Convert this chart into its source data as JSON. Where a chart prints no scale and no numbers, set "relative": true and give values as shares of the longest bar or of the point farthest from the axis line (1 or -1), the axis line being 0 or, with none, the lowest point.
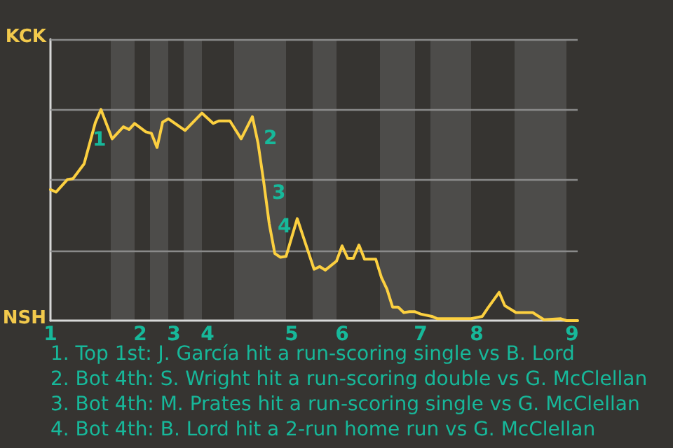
{
  "chart_data": {
    "type": "line",
    "relative": true,
    "categories": [
      "1",
      null,
      null,
      null,
      null,
      null,
      null,
      null,
      null,
      null,
      null,
      null,
      null,
      null,
      null,
      null,
      "2",
      null,
      null,
      null,
      null,
      null,
      "3",
      null,
      null,
      null,
      null,
      null,
      "4",
      null,
      null,
      null,
      null,
      null,
      null,
      null,
      null,
      null,
      null,
      null,
      null,
      null,
      null,
      "5",
      null,
      null,
      null,
      null,
      null,
      null,
      null,
      null,
      "6",
      null,
      null,
      null,
      null,
      null,
      null,
      null,
      null,
      null,
      null,
      null,
      null,
      null,
      "7",
      null,
      null,
      null,
      null,
      null,
      null,
      null,
      null,
      null,
      "8",
      null,
      null,
      null,
      null,
      null,
      null,
      null,
      null,
      null,
      null,
      null,
      null,
      null,
      null,
      null,
      null,
      "9",
      null
    ],
    "series": [
      {
        "color": "#fcd040",
        "values": [
          0.621,
          0.609,
          null,
          0.668,
          0.672,
          null,
          0.743,
          null,
          0.938,
          1,
          null,
          0.861,
          null,
          0.918,
          0.905,
          0.934,
          null,
          0.894,
          0.887,
          0.82,
          0.94,
          0.956,
          null,
          null,
          0.901,
          null,
          null,
          0.983,
          null,
          0.934,
          0.946,
          null,
          0.946,
          null,
          0.861,
          null,
          0.966,
          0.842,
          0.661,
          0.46,
          0.318,
          0.3,
          0.304,
          null,
          0.483,
          null,
          null,
          0.243,
          0.256,
          0.239,
          null,
          0.282,
          0.354,
          0.295,
          0.295,
          0.358,
          0.291,
          null,
          0.291,
          0.205,
          0.149,
          0.064,
          0.064,
          0.038,
          0.042,
          0.042,
          0.031,
          null,
          0.02,
          0.009,
          null,
          null,
          null,
          null,
          null,
          0.009,
          null,
          0.02,
          0.06,
          null,
          0.134,
          0.071,
          null,
          0.038,
          null,
          null,
          0.038,
          null,
          0.004,
          null,
          null,
          0.009,
          0,
          null,
          0
        ]
      }
    ],
    "ref_lines": [
      {
        "axis": "y",
        "value": 0.333,
        "color": "#8a8a8a"
      },
      {
        "axis": "y",
        "value": 0.667,
        "color": "#8a8a8a"
      },
      {
        "axis": "y",
        "value": 1,
        "color": "#8a8a8a"
      },
      {
        "axis": "y",
        "value": 1.333,
        "color": "#8a8a8a"
      }
    ],
    "marker": "none",
    "line_style": "solid",
    "annotations": [
      "1",
      "2",
      "3",
      "4",
      "KCK",
      "NSH",
      "1. Top 1st: J. García hit a run-scoring single vs B. Lord",
      "2. Bot 4th: S. Wright hit a run-scoring double vs G. McClellan",
      "3. Bot 4th: M. Prates hit a run-scoring single vs G. McClellan",
      "4. Bot 4th: B. Lord hit a 2-run home run vs G. McClellan"
    ]
  }
}
